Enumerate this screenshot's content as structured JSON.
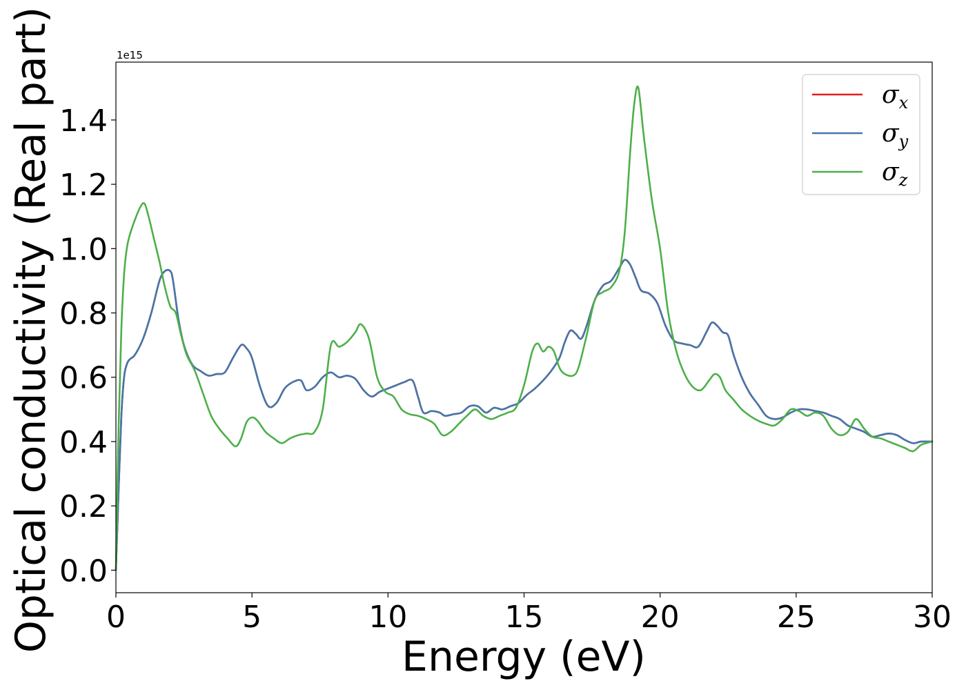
{
  "chart_data": {
    "type": "line",
    "xlabel": "Energy (eV)",
    "ylabel": "Optical conductivity (Real part)",
    "y_offset_label": "1e15",
    "xlim": [
      0,
      30
    ],
    "ylim": [
      -0.07,
      1.58
    ],
    "xticks": [
      0,
      5,
      10,
      15,
      20,
      25,
      30
    ],
    "xtick_labels": [
      "0",
      "5",
      "10",
      "15",
      "20",
      "25",
      "30"
    ],
    "yticks": [
      0.0,
      0.2,
      0.4,
      0.6,
      0.8,
      1.0,
      1.2,
      1.4
    ],
    "ytick_labels": [
      "0.0",
      "0.2",
      "0.4",
      "0.6",
      "0.8",
      "1.0",
      "1.2",
      "1.4"
    ],
    "grid": false,
    "legend_position": "top-right",
    "series": [
      {
        "name": "σx",
        "symbol": "σ",
        "subscript": "x",
        "color": "#e41a1c",
        "x": [
          0,
          0.1,
          0.2,
          0.3,
          0.4,
          0.5,
          0.7,
          1.0,
          1.3,
          1.6,
          1.8,
          2.0,
          2.1,
          2.3,
          2.5,
          2.8,
          3.1,
          3.4,
          3.7,
          4.0,
          4.3,
          4.6,
          4.8,
          5.0,
          5.3,
          5.6,
          5.9,
          6.2,
          6.5,
          6.8,
          7.0,
          7.3,
          7.6,
          7.9,
          8.2,
          8.5,
          8.8,
          9.1,
          9.4,
          9.7,
          10.0,
          10.3,
          10.6,
          10.9,
          11.1,
          11.3,
          11.6,
          11.9,
          12.1,
          12.4,
          12.7,
          13.0,
          13.3,
          13.6,
          13.9,
          14.2,
          14.5,
          14.8,
          15.1,
          15.4,
          15.7,
          16.0,
          16.3,
          16.5,
          16.7,
          16.9,
          17.1,
          17.3,
          17.6,
          17.9,
          18.2,
          18.5,
          18.7,
          18.9,
          19.1,
          19.3,
          19.6,
          19.9,
          20.2,
          20.5,
          20.8,
          21.1,
          21.4,
          21.7,
          21.9,
          22.1,
          22.3,
          22.5,
          22.7,
          23.0,
          23.3,
          23.6,
          23.9,
          24.2,
          24.5,
          24.8,
          25.1,
          25.4,
          25.7,
          26.0,
          26.3,
          26.6,
          26.9,
          27.2,
          27.5,
          27.8,
          28.1,
          28.4,
          28.7,
          29.0,
          29.3,
          29.6,
          30.0
        ],
        "values": [
          0.0,
          0.25,
          0.48,
          0.6,
          0.64,
          0.655,
          0.67,
          0.72,
          0.8,
          0.9,
          0.93,
          0.93,
          0.9,
          0.78,
          0.7,
          0.64,
          0.62,
          0.605,
          0.61,
          0.615,
          0.66,
          0.7,
          0.69,
          0.66,
          0.57,
          0.51,
          0.52,
          0.565,
          0.585,
          0.59,
          0.56,
          0.57,
          0.6,
          0.615,
          0.6,
          0.605,
          0.595,
          0.56,
          0.54,
          0.555,
          0.565,
          0.575,
          0.585,
          0.59,
          0.54,
          0.49,
          0.495,
          0.49,
          0.48,
          0.485,
          0.49,
          0.51,
          0.51,
          0.49,
          0.505,
          0.5,
          0.51,
          0.52,
          0.545,
          0.565,
          0.59,
          0.62,
          0.66,
          0.71,
          0.745,
          0.735,
          0.72,
          0.76,
          0.84,
          0.885,
          0.9,
          0.94,
          0.965,
          0.95,
          0.91,
          0.87,
          0.86,
          0.83,
          0.76,
          0.715,
          0.705,
          0.7,
          0.695,
          0.74,
          0.77,
          0.76,
          0.74,
          0.73,
          0.67,
          0.6,
          0.55,
          0.515,
          0.48,
          0.47,
          0.475,
          0.49,
          0.5,
          0.5,
          0.495,
          0.49,
          0.48,
          0.47,
          0.45,
          0.44,
          0.43,
          0.415,
          0.42,
          0.425,
          0.42,
          0.405,
          0.395,
          0.4,
          0.4
        ]
      },
      {
        "name": "σy",
        "symbol": "σ",
        "subscript": "y",
        "color": "#4477aa",
        "x": [
          0,
          0.1,
          0.2,
          0.3,
          0.4,
          0.5,
          0.7,
          1.0,
          1.3,
          1.6,
          1.8,
          2.0,
          2.1,
          2.3,
          2.5,
          2.8,
          3.1,
          3.4,
          3.7,
          4.0,
          4.3,
          4.6,
          4.8,
          5.0,
          5.3,
          5.6,
          5.9,
          6.2,
          6.5,
          6.8,
          7.0,
          7.3,
          7.6,
          7.9,
          8.2,
          8.5,
          8.8,
          9.1,
          9.4,
          9.7,
          10.0,
          10.3,
          10.6,
          10.9,
          11.1,
          11.3,
          11.6,
          11.9,
          12.1,
          12.4,
          12.7,
          13.0,
          13.3,
          13.6,
          13.9,
          14.2,
          14.5,
          14.8,
          15.1,
          15.4,
          15.7,
          16.0,
          16.3,
          16.5,
          16.7,
          16.9,
          17.1,
          17.3,
          17.6,
          17.9,
          18.2,
          18.5,
          18.7,
          18.9,
          19.1,
          19.3,
          19.6,
          19.9,
          20.2,
          20.5,
          20.8,
          21.1,
          21.4,
          21.7,
          21.9,
          22.1,
          22.3,
          22.5,
          22.7,
          23.0,
          23.3,
          23.6,
          23.9,
          24.2,
          24.5,
          24.8,
          25.1,
          25.4,
          25.7,
          26.0,
          26.3,
          26.6,
          26.9,
          27.2,
          27.5,
          27.8,
          28.1,
          28.4,
          28.7,
          29.0,
          29.3,
          29.6,
          30.0
        ],
        "values": [
          0.0,
          0.25,
          0.48,
          0.6,
          0.64,
          0.655,
          0.67,
          0.72,
          0.8,
          0.9,
          0.93,
          0.93,
          0.9,
          0.78,
          0.7,
          0.64,
          0.62,
          0.605,
          0.61,
          0.615,
          0.66,
          0.7,
          0.69,
          0.66,
          0.57,
          0.51,
          0.52,
          0.565,
          0.585,
          0.59,
          0.56,
          0.57,
          0.6,
          0.615,
          0.6,
          0.605,
          0.595,
          0.56,
          0.54,
          0.555,
          0.565,
          0.575,
          0.585,
          0.59,
          0.54,
          0.49,
          0.495,
          0.49,
          0.48,
          0.485,
          0.49,
          0.51,
          0.51,
          0.49,
          0.505,
          0.5,
          0.51,
          0.52,
          0.545,
          0.565,
          0.59,
          0.62,
          0.66,
          0.71,
          0.745,
          0.735,
          0.72,
          0.76,
          0.84,
          0.885,
          0.9,
          0.94,
          0.965,
          0.95,
          0.91,
          0.87,
          0.86,
          0.83,
          0.76,
          0.715,
          0.705,
          0.7,
          0.695,
          0.74,
          0.77,
          0.76,
          0.74,
          0.73,
          0.67,
          0.6,
          0.55,
          0.515,
          0.48,
          0.47,
          0.475,
          0.49,
          0.5,
          0.5,
          0.495,
          0.49,
          0.48,
          0.47,
          0.45,
          0.44,
          0.43,
          0.415,
          0.42,
          0.425,
          0.42,
          0.405,
          0.395,
          0.4,
          0.4
        ]
      },
      {
        "name": "σz",
        "symbol": "σ",
        "subscript": "z",
        "color": "#4daf4a",
        "x": [
          0,
          0.1,
          0.2,
          0.3,
          0.4,
          0.5,
          0.7,
          0.9,
          1.05,
          1.2,
          1.4,
          1.6,
          1.8,
          2.0,
          2.2,
          2.4,
          2.6,
          2.9,
          3.2,
          3.5,
          3.8,
          4.1,
          4.4,
          4.6,
          4.8,
          5.0,
          5.2,
          5.5,
          5.8,
          6.1,
          6.4,
          6.7,
          7.0,
          7.3,
          7.6,
          7.9,
          8.2,
          8.5,
          8.8,
          9.0,
          9.3,
          9.6,
          9.9,
          10.2,
          10.5,
          10.8,
          11.1,
          11.4,
          11.7,
          12.0,
          12.3,
          12.6,
          12.9,
          13.2,
          13.5,
          13.8,
          14.1,
          14.4,
          14.7,
          15.0,
          15.3,
          15.5,
          15.7,
          15.9,
          16.1,
          16.3,
          16.5,
          16.8,
          17.0,
          17.3,
          17.6,
          17.9,
          18.2,
          18.5,
          18.7,
          18.9,
          19.05,
          19.2,
          19.4,
          19.7,
          20.0,
          20.3,
          20.6,
          20.9,
          21.2,
          21.5,
          21.8,
          22.0,
          22.2,
          22.4,
          22.7,
          23.0,
          23.3,
          23.6,
          23.9,
          24.2,
          24.5,
          24.8,
          25.1,
          25.4,
          25.7,
          26.0,
          26.3,
          26.6,
          26.9,
          27.2,
          27.5,
          27.8,
          28.1,
          28.4,
          28.7,
          29.0,
          29.3,
          29.6,
          30.0
        ],
        "values": [
          0.0,
          0.45,
          0.75,
          0.92,
          1.0,
          1.04,
          1.09,
          1.13,
          1.14,
          1.1,
          1.03,
          0.96,
          0.88,
          0.82,
          0.8,
          0.73,
          0.67,
          0.62,
          0.55,
          0.48,
          0.44,
          0.41,
          0.385,
          0.41,
          0.46,
          0.475,
          0.465,
          0.43,
          0.41,
          0.395,
          0.41,
          0.42,
          0.425,
          0.43,
          0.5,
          0.7,
          0.695,
          0.71,
          0.74,
          0.765,
          0.72,
          0.6,
          0.555,
          0.54,
          0.5,
          0.485,
          0.48,
          0.47,
          0.455,
          0.42,
          0.43,
          0.455,
          0.48,
          0.5,
          0.48,
          0.47,
          0.48,
          0.49,
          0.505,
          0.575,
          0.68,
          0.705,
          0.68,
          0.695,
          0.68,
          0.63,
          0.61,
          0.605,
          0.63,
          0.73,
          0.84,
          0.865,
          0.88,
          0.93,
          1.05,
          1.3,
          1.45,
          1.5,
          1.35,
          1.15,
          1.0,
          0.8,
          0.68,
          0.61,
          0.57,
          0.56,
          0.59,
          0.61,
          0.6,
          0.56,
          0.53,
          0.5,
          0.48,
          0.465,
          0.455,
          0.45,
          0.47,
          0.5,
          0.495,
          0.48,
          0.49,
          0.48,
          0.44,
          0.42,
          0.43,
          0.47,
          0.44,
          0.415,
          0.41,
          0.4,
          0.39,
          0.38,
          0.37,
          0.39,
          0.4
        ]
      }
    ]
  }
}
